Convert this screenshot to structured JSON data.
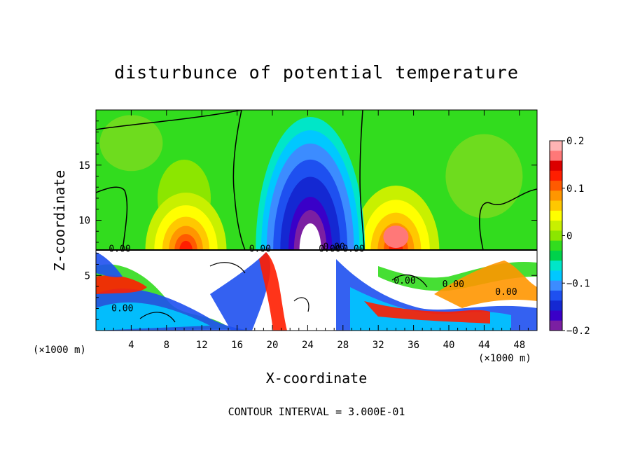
{
  "chart_data": {
    "type": "heatmap",
    "title": "disturbunce of potential temperature",
    "xlabel": "X-coordinate",
    "ylabel": "Z-coordinate",
    "x_unit_left": "(×1000 m)",
    "x_unit_right": "(×1000 m)",
    "footer": "CONTOUR INTERVAL = 3.000E-01",
    "xlim": [
      0,
      50
    ],
    "ylim": [
      0,
      20
    ],
    "x_ticks": [
      4,
      8,
      12,
      16,
      20,
      24,
      28,
      32,
      36,
      40,
      44,
      48
    ],
    "y_ticks": [
      5,
      10,
      15
    ],
    "colorbar": {
      "range": [
        -0.2,
        0.2
      ],
      "ticks": [
        0.2,
        0.1,
        0,
        -0.1,
        -0.2
      ],
      "tick_labels": [
        "0.2",
        "0.1",
        "0",
        "−0.1",
        "−0.2"
      ],
      "colors": [
        "#7b1fa2",
        "#3a00c8",
        "#1428d2",
        "#1e50f0",
        "#3c8cff",
        "#00c8ff",
        "#00e6c8",
        "#00d24b",
        "#32dc1e",
        "#8ce600",
        "#c8f000",
        "#ffff00",
        "#ffc800",
        "#ff9600",
        "#ff5a00",
        "#ff1e00",
        "#dc0000",
        "#ff7878",
        "#ffb4b4"
      ]
    },
    "contour_labels": [
      "0.00",
      "0.00",
      "0.00",
      "0.00",
      "0.00",
      "0.00",
      "0.00",
      "0.00",
      "0.00"
    ],
    "contour_interval": 0.3
  }
}
